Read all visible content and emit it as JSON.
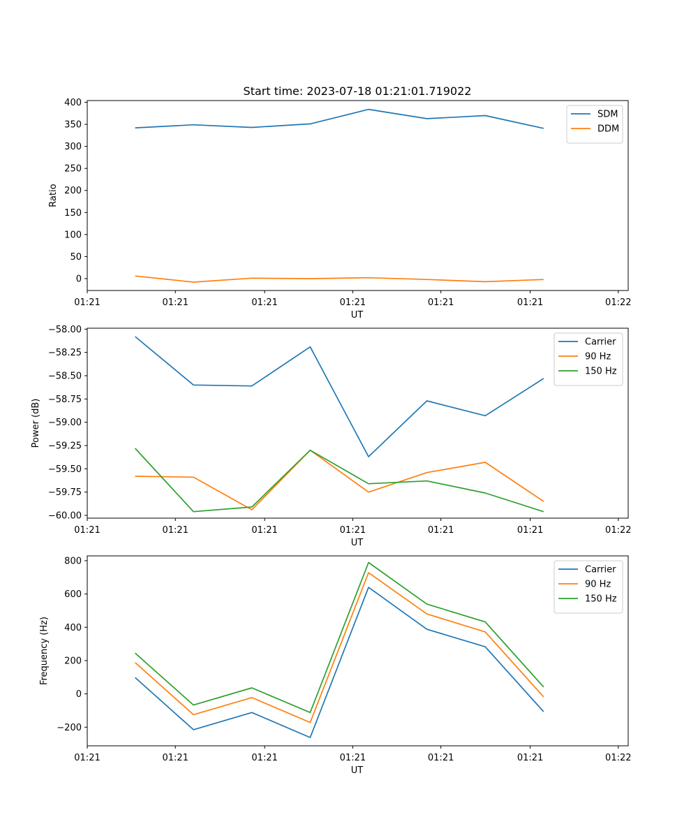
{
  "figure_title": "Start time: 2023-07-18 01:21:01.719022",
  "colors": {
    "blue": "#1f77b4",
    "orange": "#ff7f0e",
    "green": "#2ca02c"
  },
  "chart_data": [
    {
      "type": "line",
      "title": "Start time: 2023-07-18 01:21:01.719022",
      "xlabel": "UT",
      "ylabel": "Ratio",
      "x": [
        1,
        2,
        3,
        4,
        5,
        6,
        7,
        8
      ],
      "xlim": [
        0.18,
        9.45
      ],
      "xticks": [
        0.18,
        1.69,
        3.22,
        4.73,
        6.24,
        7.77,
        9.28
      ],
      "xtick_labels": [
        "01:21",
        "01:21",
        "01:21",
        "01:21",
        "01:21",
        "01:21",
        "01:22"
      ],
      "ylim": [
        -27,
        404
      ],
      "yticks": [
        0,
        50,
        100,
        150,
        200,
        250,
        300,
        350,
        400
      ],
      "ytick_labels": [
        "0",
        "50",
        "100",
        "150",
        "200",
        "250",
        "300",
        "350",
        "400"
      ],
      "legend": "top-right",
      "series": [
        {
          "name": "SDM",
          "color": "#1f77b4",
          "values": [
            342,
            349,
            343,
            351,
            384,
            363,
            370,
            341
          ]
        },
        {
          "name": "DDM",
          "color": "#ff7f0e",
          "values": [
            6,
            -8,
            1,
            0,
            2,
            -2,
            -7,
            -2
          ]
        }
      ]
    },
    {
      "type": "line",
      "title": "",
      "xlabel": "UT",
      "ylabel": "Power (dB)",
      "x": [
        1,
        2,
        3,
        4,
        5,
        6,
        7,
        8
      ],
      "xlim": [
        0.18,
        9.45
      ],
      "xticks": [
        0.18,
        1.69,
        3.22,
        4.73,
        6.24,
        7.77,
        9.28
      ],
      "xtick_labels": [
        "01:21",
        "01:21",
        "01:21",
        "01:21",
        "01:21",
        "01:21",
        "01:22"
      ],
      "ylim": [
        -60.03,
        -57.99
      ],
      "yticks": [
        -60.0,
        -59.75,
        -59.5,
        -59.25,
        -59.0,
        -58.75,
        -58.5,
        -58.25,
        -58.0
      ],
      "ytick_labels": [
        "−60.00",
        "−59.75",
        "−59.50",
        "−59.25",
        "−59.00",
        "−58.75",
        "−58.50",
        "−58.25",
        "−58.00"
      ],
      "legend": "top-right",
      "series": [
        {
          "name": "Carrier",
          "color": "#1f77b4",
          "values": [
            -58.08,
            -58.6,
            -58.61,
            -58.19,
            -59.37,
            -58.77,
            -58.93,
            -58.53
          ]
        },
        {
          "name": "90 Hz",
          "color": "#ff7f0e",
          "values": [
            -59.58,
            -59.59,
            -59.94,
            -59.3,
            -59.75,
            -59.54,
            -59.43,
            -59.85
          ]
        },
        {
          "name": "150 Hz",
          "color": "#2ca02c",
          "values": [
            -59.28,
            -59.96,
            -59.91,
            -59.3,
            -59.66,
            -59.63,
            -59.76,
            -59.96
          ]
        }
      ]
    },
    {
      "type": "line",
      "title": "",
      "xlabel": "UT",
      "ylabel": "Frequency (Hz)",
      "x": [
        1,
        2,
        3,
        4,
        5,
        6,
        7,
        8
      ],
      "xlim": [
        0.18,
        9.45
      ],
      "xticks": [
        0.18,
        1.69,
        3.22,
        4.73,
        6.24,
        7.77,
        9.28
      ],
      "xtick_labels": [
        "01:21",
        "01:21",
        "01:21",
        "01:21",
        "01:21",
        "01:21",
        "01:22"
      ],
      "ylim": [
        -312,
        829
      ],
      "yticks": [
        -200,
        0,
        200,
        400,
        600,
        800
      ],
      "ytick_labels": [
        "−200",
        "0",
        "200",
        "400",
        "600",
        "800"
      ],
      "legend": "top-right",
      "series": [
        {
          "name": "Carrier",
          "color": "#1f77b4",
          "values": [
            98,
            -215,
            -112,
            -262,
            640,
            388,
            283,
            -107
          ]
        },
        {
          "name": "90 Hz",
          "color": "#ff7f0e",
          "values": [
            188,
            -125,
            -22,
            -172,
            728,
            480,
            372,
            -18
          ]
        },
        {
          "name": "150 Hz",
          "color": "#2ca02c",
          "values": [
            245,
            -67,
            36,
            -112,
            789,
            539,
            432,
            41
          ]
        }
      ]
    }
  ]
}
